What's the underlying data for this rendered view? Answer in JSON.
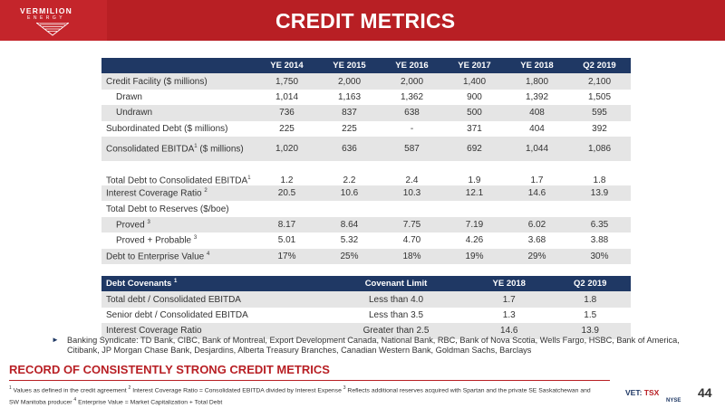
{
  "brand": {
    "name": "VERMILION",
    "sub": "ENERGY"
  },
  "title": "CREDIT METRICS",
  "metrics": {
    "headers": [
      "",
      "YE 2014",
      "YE 2015",
      "YE 2016",
      "YE 2017",
      "YE 2018",
      "Q2 2019"
    ],
    "rows": [
      {
        "label": "Credit Facility ($ millions)",
        "values": [
          "1,750",
          "2,000",
          "2,000",
          "1,400",
          "1,800",
          "2,100"
        ]
      },
      {
        "label": "Drawn",
        "values": [
          "1,014",
          "1,163",
          "1,362",
          "900",
          "1,392",
          "1,505"
        ]
      },
      {
        "label": "Undrawn",
        "values": [
          "736",
          "837",
          "638",
          "500",
          "408",
          "595"
        ]
      },
      {
        "label": "Subordinated Debt ($ millions)",
        "values": [
          "225",
          "225",
          "-",
          "371",
          "404",
          "392"
        ]
      },
      {
        "label": "Consolidated EBITDA",
        "sup": "1",
        "label_tail": " ($ millions)",
        "values": [
          "1,020",
          "636",
          "587",
          "692",
          "1,044",
          "1,086"
        ]
      },
      {
        "label": "Total Debt to Consolidated EBITDA",
        "sup": "1",
        "values": [
          "1.2",
          "2.2",
          "2.4",
          "1.9",
          "1.7",
          "1.8"
        ]
      },
      {
        "label": "Interest Coverage Ratio",
        "sup": "2",
        "values": [
          "20.5",
          "10.6",
          "10.3",
          "12.1",
          "14.6",
          "13.9"
        ]
      },
      {
        "label": "Total Debt to Reserves ($/boe)",
        "values": []
      },
      {
        "label": "Proved",
        "sup": "3",
        "values": [
          "8.17",
          "8.64",
          "7.75",
          "7.19",
          "6.02",
          "6.35"
        ]
      },
      {
        "label": "Proved + Probable",
        "sup": "3",
        "values": [
          "5.01",
          "5.32",
          "4.70",
          "4.26",
          "3.68",
          "3.88"
        ]
      },
      {
        "label": "Debt to Enterprise Value",
        "sup": "4",
        "values": [
          "17%",
          "25%",
          "18%",
          "19%",
          "29%",
          "30%"
        ]
      }
    ]
  },
  "covenants": {
    "headers": [
      "Debt Covenants",
      "Covenant Limit",
      "YE 2018",
      "Q2 2019"
    ],
    "header_sup": "1",
    "rows": [
      {
        "label": "Total debt / Consolidated EBITDA",
        "limit": "Less than 4.0",
        "ye2018": "1.7",
        "q22019": "1.8"
      },
      {
        "label": "Senior debt / Consolidated EBITDA",
        "limit": "Less than 3.5",
        "ye2018": "1.3",
        "q22019": "1.5"
      },
      {
        "label": "Interest Coverage Ratio",
        "limit": "Greater than 2.5",
        "ye2018": "14.6",
        "q22019": "13.9"
      }
    ]
  },
  "bullet": "Banking Syndicate: TD Bank, CIBC, Bank of Montreal, Export Development Canada, National Bank, RBC, Bank of Nova Scotia, Wells Fargo, HSBC, Bank of America, Citibank, JP Morgan Chase Bank, Desjardins, Alberta Treasury Branches, Canadian Western Bank, Goldman Sachs, Barclays",
  "subtitle": "RECORD OF CONSISTENTLY STRONG CREDIT METRICS",
  "footnotes": {
    "f1": "Values as defined in the credit agreement",
    "f2": "Interest Coverage Ratio = Consolidated EBITDA divided by Interest Expense",
    "f3": "Reflects additional reserves acquired with Spartan and the private SE Saskatchewan and SW Manitoba producer",
    "f4": "Enterprise Value = Market Capitalization + Total Debt"
  },
  "exchange": {
    "vet": "VET:",
    "tsx": "TSX",
    "nyse": "NYSE"
  },
  "page_number": "44"
}
